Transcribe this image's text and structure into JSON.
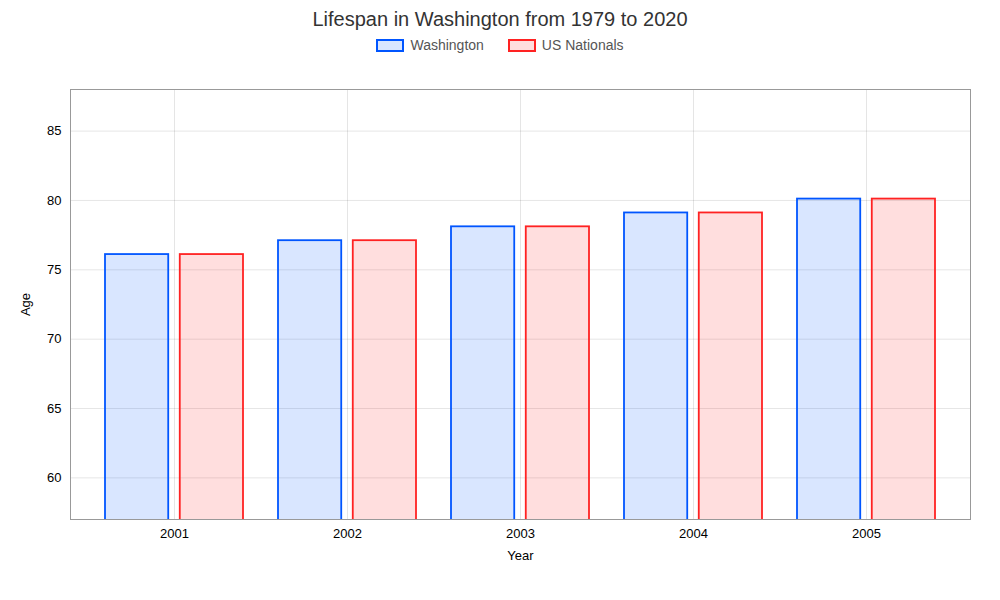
{
  "chart_data": {
    "type": "bar",
    "title": "Lifespan in Washington from 1979 to 2020",
    "xlabel": "Year",
    "ylabel": "Age",
    "categories": [
      "2001",
      "2002",
      "2003",
      "2004",
      "2005"
    ],
    "series": [
      {
        "name": "Washington",
        "color": "#0055ff",
        "values": [
          76.1,
          77.1,
          78.1,
          79.1,
          80.1
        ]
      },
      {
        "name": "US Nationals",
        "color": "#ff2222",
        "values": [
          76.1,
          77.1,
          78.1,
          79.1,
          80.1
        ]
      }
    ],
    "ylim": [
      57,
      88
    ],
    "yticks": [
      60,
      65,
      70,
      75,
      80,
      85
    ],
    "grid": true,
    "legend": "top"
  }
}
